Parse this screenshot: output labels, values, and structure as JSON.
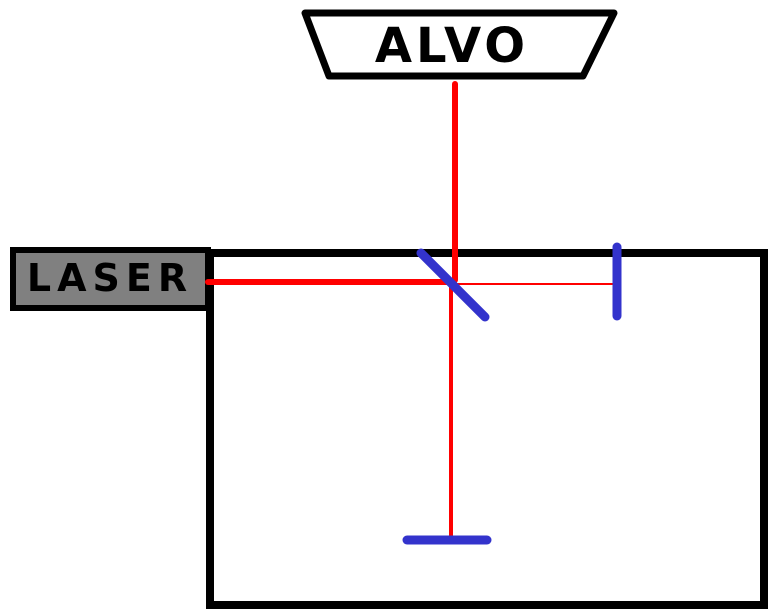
{
  "labels": {
    "target": "ALVO",
    "source": "LASER"
  },
  "colors": {
    "outline": "#000000",
    "laser_box_fill": "#808080",
    "beam": "#ff0000",
    "mirror": "#3333cc",
    "background": "#ffffff"
  }
}
